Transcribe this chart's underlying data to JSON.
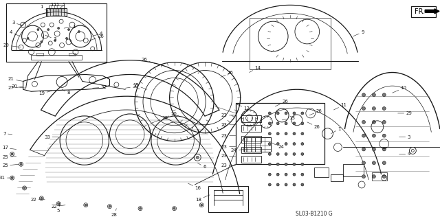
{
  "bg_color": "#ffffff",
  "line_color": "#1a1a1a",
  "fig_width": 6.4,
  "fig_height": 3.19,
  "diagram_code": "SL03-B1210 G",
  "fr_label": "FR."
}
